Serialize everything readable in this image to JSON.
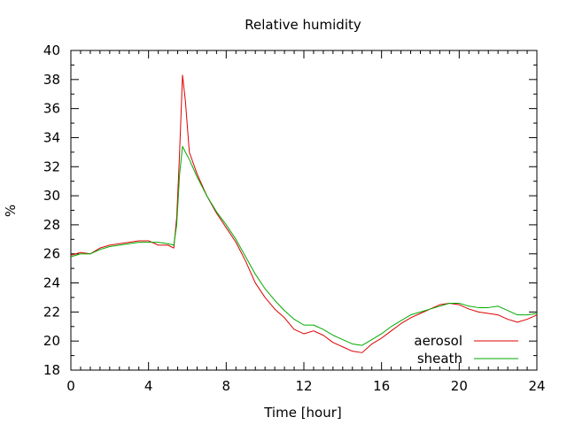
{
  "chart_data": {
    "type": "line",
    "title": "Relative humidity",
    "xlabel": "Time [hour]",
    "ylabel": "%",
    "xlim": [
      0,
      24
    ],
    "ylim": [
      18,
      40
    ],
    "xticks": [
      0,
      4,
      8,
      12,
      16,
      20,
      24
    ],
    "yticks": [
      18,
      20,
      22,
      24,
      26,
      28,
      30,
      32,
      34,
      36,
      38,
      40
    ],
    "grid": false,
    "legend_position": "bottom-right",
    "series": [
      {
        "name": "aerosol",
        "color": "#dd0000",
        "points": [
          [
            0,
            25.9
          ],
          [
            0.5,
            26.1
          ],
          [
            1,
            26.0
          ],
          [
            1.5,
            26.4
          ],
          [
            2,
            26.6
          ],
          [
            2.5,
            26.7
          ],
          [
            3,
            26.8
          ],
          [
            3.5,
            26.9
          ],
          [
            4,
            26.9
          ],
          [
            4.5,
            26.6
          ],
          [
            5,
            26.6
          ],
          [
            5.3,
            26.4
          ],
          [
            5.45,
            28.5
          ],
          [
            5.6,
            33.0
          ],
          [
            5.75,
            38.3
          ],
          [
            5.9,
            36.5
          ],
          [
            6.1,
            33.0
          ],
          [
            6.5,
            31.5
          ],
          [
            7,
            30.0
          ],
          [
            7.5,
            28.8
          ],
          [
            8,
            27.8
          ],
          [
            8.5,
            26.8
          ],
          [
            9,
            25.5
          ],
          [
            9.5,
            24.0
          ],
          [
            10,
            23.0
          ],
          [
            10.5,
            22.2
          ],
          [
            11,
            21.6
          ],
          [
            11.5,
            20.8
          ],
          [
            12,
            20.5
          ],
          [
            12.5,
            20.7
          ],
          [
            13,
            20.4
          ],
          [
            13.5,
            19.9
          ],
          [
            14,
            19.6
          ],
          [
            14.5,
            19.3
          ],
          [
            15,
            19.2
          ],
          [
            15.5,
            19.8
          ],
          [
            16,
            20.2
          ],
          [
            16.5,
            20.7
          ],
          [
            17,
            21.2
          ],
          [
            17.5,
            21.6
          ],
          [
            18,
            21.9
          ],
          [
            18.5,
            22.2
          ],
          [
            19,
            22.5
          ],
          [
            19.5,
            22.6
          ],
          [
            20,
            22.5
          ],
          [
            20.5,
            22.2
          ],
          [
            21,
            22.0
          ],
          [
            21.5,
            21.9
          ],
          [
            22,
            21.8
          ],
          [
            22.5,
            21.5
          ],
          [
            23,
            21.3
          ],
          [
            23.5,
            21.5
          ],
          [
            24,
            21.8
          ]
        ]
      },
      {
        "name": "sheath",
        "color": "#00aa00",
        "points": [
          [
            0,
            25.8
          ],
          [
            0.5,
            26.0
          ],
          [
            1,
            26.0
          ],
          [
            1.5,
            26.3
          ],
          [
            2,
            26.5
          ],
          [
            2.5,
            26.6
          ],
          [
            3,
            26.7
          ],
          [
            3.5,
            26.8
          ],
          [
            4,
            26.8
          ],
          [
            4.5,
            26.8
          ],
          [
            5,
            26.7
          ],
          [
            5.3,
            26.6
          ],
          [
            5.45,
            28.0
          ],
          [
            5.6,
            31.5
          ],
          [
            5.75,
            33.4
          ],
          [
            5.9,
            33.0
          ],
          [
            6.1,
            32.5
          ],
          [
            6.5,
            31.3
          ],
          [
            7,
            30.0
          ],
          [
            7.5,
            28.9
          ],
          [
            8,
            28.0
          ],
          [
            8.5,
            27.0
          ],
          [
            9,
            25.8
          ],
          [
            9.5,
            24.6
          ],
          [
            10,
            23.6
          ],
          [
            10.5,
            22.8
          ],
          [
            11,
            22.1
          ],
          [
            11.5,
            21.5
          ],
          [
            12,
            21.1
          ],
          [
            12.5,
            21.1
          ],
          [
            13,
            20.8
          ],
          [
            13.5,
            20.4
          ],
          [
            14,
            20.1
          ],
          [
            14.5,
            19.8
          ],
          [
            15,
            19.7
          ],
          [
            15.5,
            20.1
          ],
          [
            16,
            20.5
          ],
          [
            16.5,
            21.0
          ],
          [
            17,
            21.4
          ],
          [
            17.5,
            21.8
          ],
          [
            18,
            22.0
          ],
          [
            18.5,
            22.2
          ],
          [
            19,
            22.4
          ],
          [
            19.5,
            22.6
          ],
          [
            20,
            22.6
          ],
          [
            20.5,
            22.4
          ],
          [
            21,
            22.3
          ],
          [
            21.5,
            22.3
          ],
          [
            22,
            22.4
          ],
          [
            22.5,
            22.1
          ],
          [
            23,
            21.8
          ],
          [
            23.5,
            21.8
          ],
          [
            24,
            21.9
          ]
        ]
      }
    ]
  }
}
